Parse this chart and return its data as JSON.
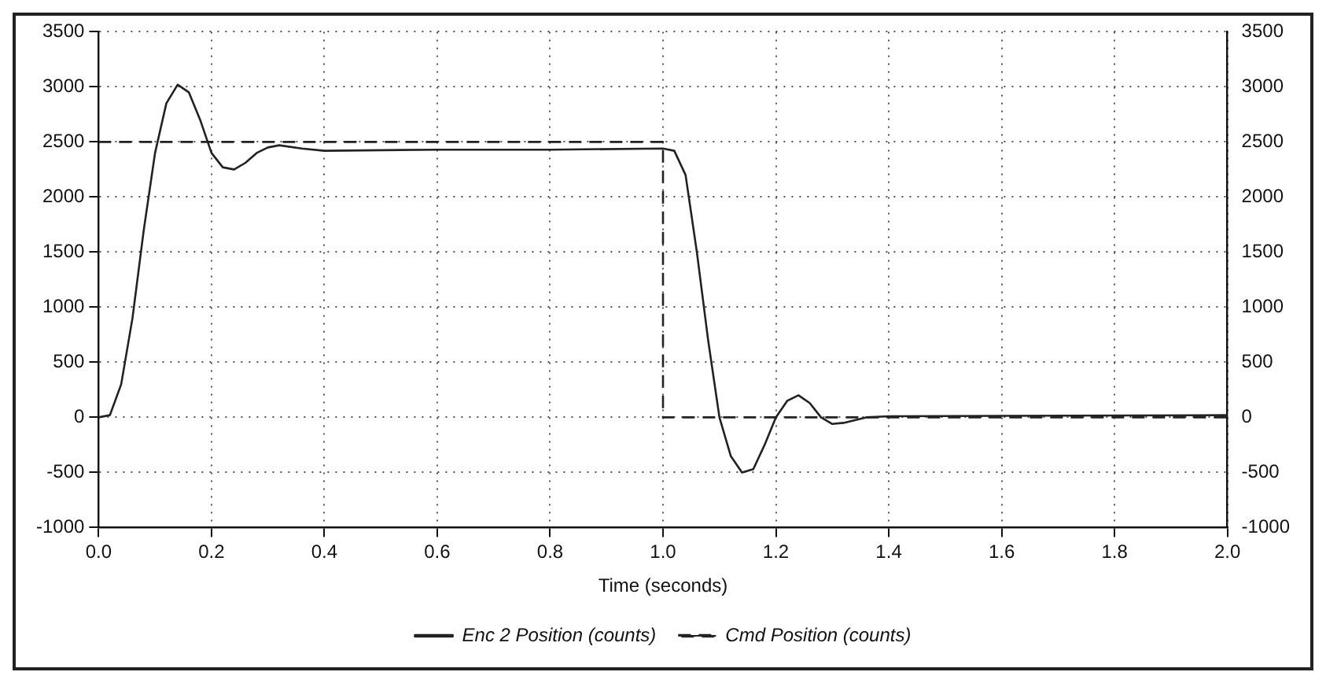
{
  "chart_data": {
    "type": "line",
    "xlabel": "Time (seconds)",
    "xlim": [
      0,
      2
    ],
    "xticks": [
      {
        "value": 0,
        "label": "0.0"
      },
      {
        "value": 0.2,
        "label": "0.2"
      },
      {
        "value": 0.4,
        "label": "0.4"
      },
      {
        "value": 0.6,
        "label": "0.6"
      },
      {
        "value": 0.8,
        "label": "0.8"
      },
      {
        "value": 1,
        "label": "1.0"
      },
      {
        "value": 1.2,
        "label": "1.2"
      },
      {
        "value": 1.4,
        "label": "1.4"
      },
      {
        "value": 1.6,
        "label": "1.6"
      },
      {
        "value": 1.8,
        "label": "1.8"
      },
      {
        "value": 2,
        "label": "2.0"
      }
    ],
    "ylim": [
      -1000,
      3500
    ],
    "yticks": [
      -1000,
      -500,
      0,
      500,
      1000,
      1500,
      2000,
      2500,
      3000,
      3500
    ],
    "y2lim": [
      -1000,
      3500
    ],
    "y2ticks": [
      -1000,
      -500,
      0,
      500,
      1000,
      1500,
      2000,
      2500,
      3000,
      3500
    ],
    "grid": true,
    "legend": "bottom",
    "marker": "none",
    "series": [
      {
        "name": "Enc 2 Position (counts)",
        "color": "#222222",
        "line_style": "solid",
        "x": [
          0,
          0.02,
          0.04,
          0.06,
          0.08,
          0.1,
          0.12,
          0.14,
          0.16,
          0.18,
          0.2,
          0.22,
          0.24,
          0.26,
          0.28,
          0.3,
          0.32,
          0.36,
          0.4,
          0.6,
          0.8,
          1.0,
          1.02,
          1.04,
          1.06,
          1.08,
          1.1,
          1.12,
          1.14,
          1.16,
          1.18,
          1.2,
          1.22,
          1.24,
          1.26,
          1.28,
          1.3,
          1.32,
          1.36,
          1.4,
          2.0
        ],
        "values": [
          0,
          20,
          300,
          900,
          1700,
          2400,
          2850,
          3020,
          2950,
          2700,
          2400,
          2270,
          2250,
          2310,
          2400,
          2450,
          2470,
          2440,
          2420,
          2430,
          2430,
          2440,
          2420,
          2200,
          1500,
          700,
          0,
          -350,
          -500,
          -470,
          -250,
          0,
          150,
          200,
          130,
          0,
          -60,
          -50,
          0,
          10,
          20
        ]
      },
      {
        "name": "Cmd Position (counts)",
        "color": "#222222",
        "line_style": "dashed",
        "x": [
          0,
          1.0,
          1.0,
          2.0
        ],
        "values": [
          2500,
          2500,
          0,
          0
        ]
      }
    ]
  }
}
